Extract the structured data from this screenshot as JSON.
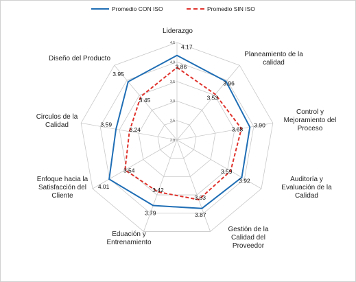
{
  "chart_data": {
    "type": "radar",
    "title": "",
    "axes": [
      {
        "label": [
          "Liderazgo"
        ]
      },
      {
        "label": [
          "Planeamiento de la",
          "calidad"
        ]
      },
      {
        "label": [
          "Control y",
          "Mejoramiento del",
          "Proceso"
        ]
      },
      {
        "label": [
          "Auditoría y",
          "Evaluación de la",
          "Calidad"
        ]
      },
      {
        "label": [
          "Gestión de la",
          "Calidad del",
          "Proveedor"
        ]
      },
      {
        "label": [
          "Eduación y",
          "Entrenamiento"
        ]
      },
      {
        "label": [
          "Enfoque hacia la",
          "Satisfacción del",
          "Cliente"
        ]
      },
      {
        "label": [
          "Circulos de la",
          "Calidad"
        ]
      },
      {
        "label": [
          "Diseño del Producto"
        ]
      }
    ],
    "ticks": [
      "2.0",
      "2.5",
      "3.0",
      "3.5",
      "4.0",
      "4.5"
    ],
    "range": [
      2.0,
      4.5
    ],
    "series": [
      {
        "name": "Promedio CON ISO",
        "color": "#1f6eb5",
        "dash": "solid",
        "values": [
          4.17,
          3.96,
          3.9,
          3.92,
          3.87,
          3.79,
          4.01,
          3.59,
          3.95
        ],
        "labels": [
          "4.17",
          "3.96",
          "3.90",
          "3.92",
          "3.87",
          "3.79",
          "4.01",
          "3.59",
          "3.95"
        ]
      },
      {
        "name": "Promedio SIN ISO",
        "color": "#e0312b",
        "dash": "dashed",
        "values": [
          3.86,
          3.53,
          3.68,
          3.59,
          3.63,
          3.42,
          3.54,
          3.24,
          3.45
        ],
        "labels": [
          "3.86",
          "3.53",
          "3.68",
          "3.59",
          "3.63",
          "3.42",
          "3.54",
          "3.24",
          "3.45"
        ]
      }
    ],
    "legend": "top"
  }
}
